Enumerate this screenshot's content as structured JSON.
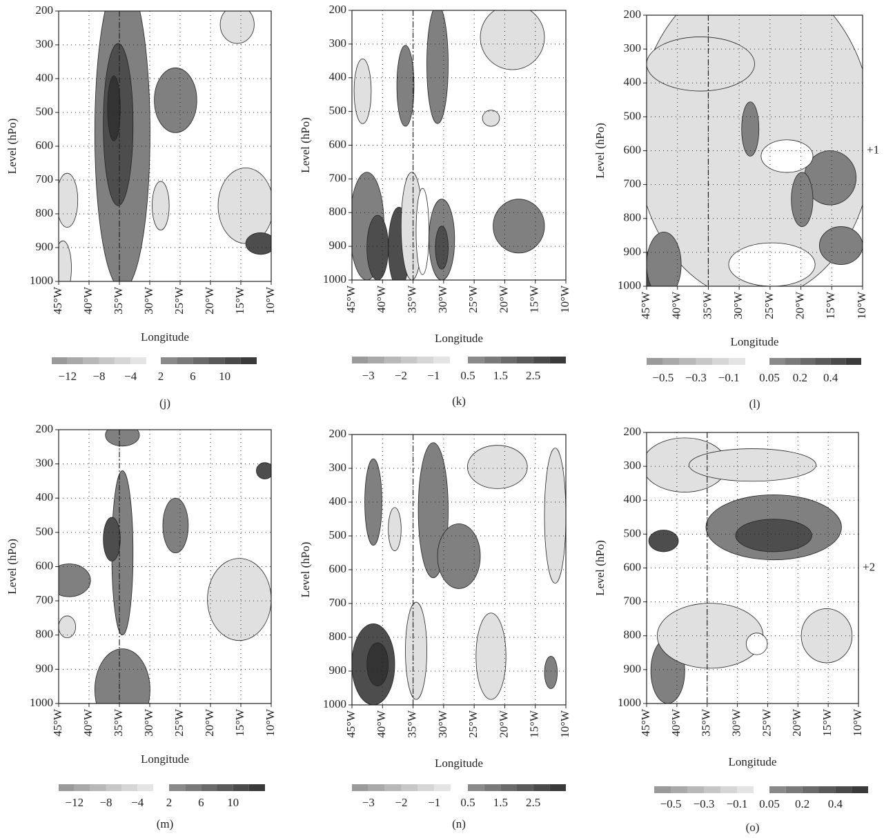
{
  "chart_data": [
    {
      "type": "contour",
      "panel_label": "(j)",
      "x_label": "Longitude",
      "y_label": "Level (hPo)",
      "xlim": [
        -45,
        -10
      ],
      "ylim": [
        1000,
        200
      ],
      "grid": true,
      "vline": -35,
      "xticks": [
        {
          "value": -45,
          "label": "45°W"
        },
        {
          "value": -40,
          "label": "40°W"
        },
        {
          "value": -35,
          "label": "35°W"
        },
        {
          "value": -30,
          "label": "30°W"
        },
        {
          "value": -25,
          "label": "25°W"
        },
        {
          "value": -20,
          "label": "20°W"
        },
        {
          "value": -15,
          "label": "15°W"
        },
        {
          "value": -10,
          "label": "10°W"
        }
      ],
      "yticks": [
        200,
        300,
        400,
        500,
        600,
        700,
        800,
        900,
        1000
      ],
      "colorbar": {
        "levels_neg": [
          -14,
          -12,
          -10,
          -8,
          -6,
          -4,
          -2
        ],
        "levels_pos": [
          2,
          4,
          6,
          8,
          10,
          12,
          14
        ],
        "colors_neg": [
          "#9a9a9a",
          "#a9a9a9",
          "#b8b8b8",
          "#c7c7c7",
          "#d6d6d6",
          "#e4e4e4"
        ],
        "colors_pos": [
          "#8a8a8a",
          "#7a7a7a",
          "#6a6a6a",
          "#5a5a5a",
          "#4a4a4a",
          "#3a3a3a"
        ],
        "ticks": [
          {
            "value": -12,
            "label": "−12"
          },
          {
            "value": -8,
            "label": "−8"
          },
          {
            "value": -4,
            "label": "−4"
          },
          2,
          6,
          10
        ]
      }
    },
    {
      "type": "contour",
      "panel_label": "(k)",
      "x_label": "Longitude",
      "y_label": "Level (hPo)",
      "xlim": [
        -45,
        -10
      ],
      "ylim": [
        1000,
        200
      ],
      "grid": true,
      "vline": -35,
      "xticks": [
        {
          "value": -45,
          "label": "45°W"
        },
        {
          "value": -40,
          "label": "40°W"
        },
        {
          "value": -35,
          "label": "35°W"
        },
        {
          "value": -30,
          "label": "30°W"
        },
        {
          "value": -25,
          "label": "25°W"
        },
        {
          "value": -20,
          "label": "20°W"
        },
        {
          "value": -15,
          "label": "15°W"
        },
        {
          "value": -10,
          "label": "10°W"
        }
      ],
      "yticks": [
        200,
        300,
        400,
        500,
        600,
        700,
        800,
        900,
        1000
      ],
      "colorbar": {
        "levels_neg": [
          -3.5,
          -3,
          -2.5,
          -2,
          -1.5,
          -1,
          -0.5
        ],
        "levels_pos": [
          0.5,
          1,
          1.5,
          2,
          2.5,
          3,
          3.5
        ],
        "colors_neg": [
          "#9a9a9a",
          "#a9a9a9",
          "#b8b8b8",
          "#c7c7c7",
          "#d6d6d6",
          "#e4e4e4"
        ],
        "colors_pos": [
          "#8a8a8a",
          "#7a7a7a",
          "#6a6a6a",
          "#5a5a5a",
          "#4a4a4a",
          "#3a3a3a"
        ],
        "ticks": [
          {
            "value": -3,
            "label": "−3"
          },
          {
            "value": -2,
            "label": "−2"
          },
          {
            "value": -1,
            "label": "−1"
          },
          0.5,
          1.5,
          2.5
        ]
      }
    },
    {
      "type": "contour",
      "panel_label": "(l)",
      "x_label": "Longitude",
      "y_label": "Level (hPo)",
      "xlim": [
        -45,
        -10
      ],
      "ylim": [
        1000,
        200
      ],
      "grid": true,
      "vline": -35,
      "annotations": [
        "+1"
      ],
      "xticks": [
        {
          "value": -45,
          "label": "45°W"
        },
        {
          "value": -40,
          "label": "40°W"
        },
        {
          "value": -35,
          "label": "35°W"
        },
        {
          "value": -30,
          "label": "30°W"
        },
        {
          "value": -25,
          "label": "25°W"
        },
        {
          "value": -20,
          "label": "20°W"
        },
        {
          "value": -15,
          "label": "15°W"
        },
        {
          "value": -10,
          "label": "10°W"
        }
      ],
      "yticks": [
        200,
        300,
        400,
        500,
        600,
        700,
        800,
        900,
        1000
      ],
      "colorbar": {
        "levels_neg": [
          -0.6,
          -0.5,
          -0.4,
          -0.3,
          -0.2,
          -0.1,
          -0.05
        ],
        "levels_pos": [
          0.05,
          0.1,
          0.2,
          0.3,
          0.4,
          0.5,
          0.6
        ],
        "colors_neg": [
          "#9a9a9a",
          "#a9a9a9",
          "#b8b8b8",
          "#c7c7c7",
          "#d6d6d6",
          "#e4e4e4"
        ],
        "colors_pos": [
          "#8a8a8a",
          "#7a7a7a",
          "#6a6a6a",
          "#5a5a5a",
          "#4a4a4a",
          "#3a3a3a"
        ],
        "ticks": [
          {
            "value": -0.5,
            "label": "−0.5"
          },
          {
            "value": -0.3,
            "label": "−0.3"
          },
          {
            "value": -0.1,
            "label": "−0.1"
          },
          0.05,
          0.2,
          0.4
        ]
      }
    },
    {
      "type": "contour",
      "panel_label": "(m)",
      "x_label": "Longitude",
      "y_label": "Level (hPo)",
      "xlim": [
        -45,
        -10
      ],
      "ylim": [
        1000,
        200
      ],
      "grid": true,
      "vline": -35,
      "xticks": [
        {
          "value": -45,
          "label": "45°W"
        },
        {
          "value": -40,
          "label": "40°W"
        },
        {
          "value": -35,
          "label": "35°W"
        },
        {
          "value": -30,
          "label": "30°W"
        },
        {
          "value": -25,
          "label": "25°W"
        },
        {
          "value": -20,
          "label": "20°W"
        },
        {
          "value": -15,
          "label": "15°W"
        },
        {
          "value": -10,
          "label": "10°W"
        }
      ],
      "yticks": [
        200,
        300,
        400,
        500,
        600,
        700,
        800,
        900,
        1000
      ],
      "colorbar": {
        "levels_neg": [
          -14,
          -12,
          -10,
          -8,
          -6,
          -4,
          -2
        ],
        "levels_pos": [
          2,
          4,
          6,
          8,
          10,
          12,
          14
        ],
        "colors_neg": [
          "#9a9a9a",
          "#a9a9a9",
          "#b8b8b8",
          "#c7c7c7",
          "#d6d6d6",
          "#e4e4e4"
        ],
        "colors_pos": [
          "#8a8a8a",
          "#7a7a7a",
          "#6a6a6a",
          "#5a5a5a",
          "#4a4a4a",
          "#3a3a3a"
        ],
        "ticks": [
          {
            "value": -12,
            "label": "−12"
          },
          {
            "value": -8,
            "label": "−8"
          },
          {
            "value": -4,
            "label": "−4"
          },
          2,
          6,
          10
        ]
      }
    },
    {
      "type": "contour",
      "panel_label": "(n)",
      "x_label": "Longitude",
      "y_label": "Level (hPo)",
      "xlim": [
        -45,
        -10
      ],
      "ylim": [
        1000,
        200
      ],
      "grid": true,
      "vline": -35,
      "xticks": [
        {
          "value": -45,
          "label": "45°W"
        },
        {
          "value": -40,
          "label": "40°W"
        },
        {
          "value": -35,
          "label": "35°W"
        },
        {
          "value": -30,
          "label": "30°W"
        },
        {
          "value": -25,
          "label": "25°W"
        },
        {
          "value": -20,
          "label": "20°W"
        },
        {
          "value": -15,
          "label": "15°W"
        },
        {
          "value": -10,
          "label": "10°W"
        }
      ],
      "yticks": [
        200,
        300,
        400,
        500,
        600,
        700,
        800,
        900,
        1000
      ],
      "colorbar": {
        "levels_neg": [
          -3.5,
          -3,
          -2.5,
          -2,
          -1.5,
          -1,
          -0.5
        ],
        "levels_pos": [
          0.5,
          1,
          1.5,
          2,
          2.5,
          3,
          3.5
        ],
        "colors_neg": [
          "#9a9a9a",
          "#a9a9a9",
          "#b8b8b8",
          "#c7c7c7",
          "#d6d6d6",
          "#e4e4e4"
        ],
        "colors_pos": [
          "#8a8a8a",
          "#7a7a7a",
          "#6a6a6a",
          "#5a5a5a",
          "#4a4a4a",
          "#3a3a3a"
        ],
        "ticks": [
          {
            "value": -3,
            "label": "−3"
          },
          {
            "value": -2,
            "label": "−2"
          },
          {
            "value": -1,
            "label": "−1"
          },
          0.5,
          1.5,
          2.5
        ]
      }
    },
    {
      "type": "contour",
      "panel_label": "(o)",
      "x_label": "Longitude",
      "y_label": "Level (hPo)",
      "xlim": [
        -45,
        -10
      ],
      "ylim": [
        1000,
        200
      ],
      "grid": true,
      "vline": -35,
      "annotations": [
        "+2"
      ],
      "xticks": [
        {
          "value": -45,
          "label": "45°W"
        },
        {
          "value": -40,
          "label": "40°W"
        },
        {
          "value": -35,
          "label": "35°W"
        },
        {
          "value": -30,
          "label": "30°W"
        },
        {
          "value": -25,
          "label": "25°W"
        },
        {
          "value": -20,
          "label": "20°W"
        },
        {
          "value": -15,
          "label": "15°W"
        },
        {
          "value": -10,
          "label": "10°W"
        }
      ],
      "yticks": [
        200,
        300,
        400,
        500,
        600,
        700,
        800,
        900,
        1000
      ],
      "colorbar": {
        "levels_neg": [
          -0.6,
          -0.5,
          -0.4,
          -0.3,
          -0.2,
          -0.1,
          -0.05
        ],
        "levels_pos": [
          0.05,
          0.1,
          0.2,
          0.3,
          0.4,
          0.5,
          0.6
        ],
        "colors_neg": [
          "#9a9a9a",
          "#a9a9a9",
          "#b8b8b8",
          "#c7c7c7",
          "#d6d6d6",
          "#e4e4e4"
        ],
        "colors_pos": [
          "#8a8a8a",
          "#7a7a7a",
          "#6a6a6a",
          "#5a5a5a",
          "#4a4a4a",
          "#3a3a3a"
        ],
        "ticks": [
          {
            "value": -0.5,
            "label": "−0.5"
          },
          {
            "value": -0.3,
            "label": "−0.3"
          },
          {
            "value": -0.1,
            "label": "−0.1"
          },
          0.05,
          0.2,
          0.4
        ]
      }
    }
  ]
}
